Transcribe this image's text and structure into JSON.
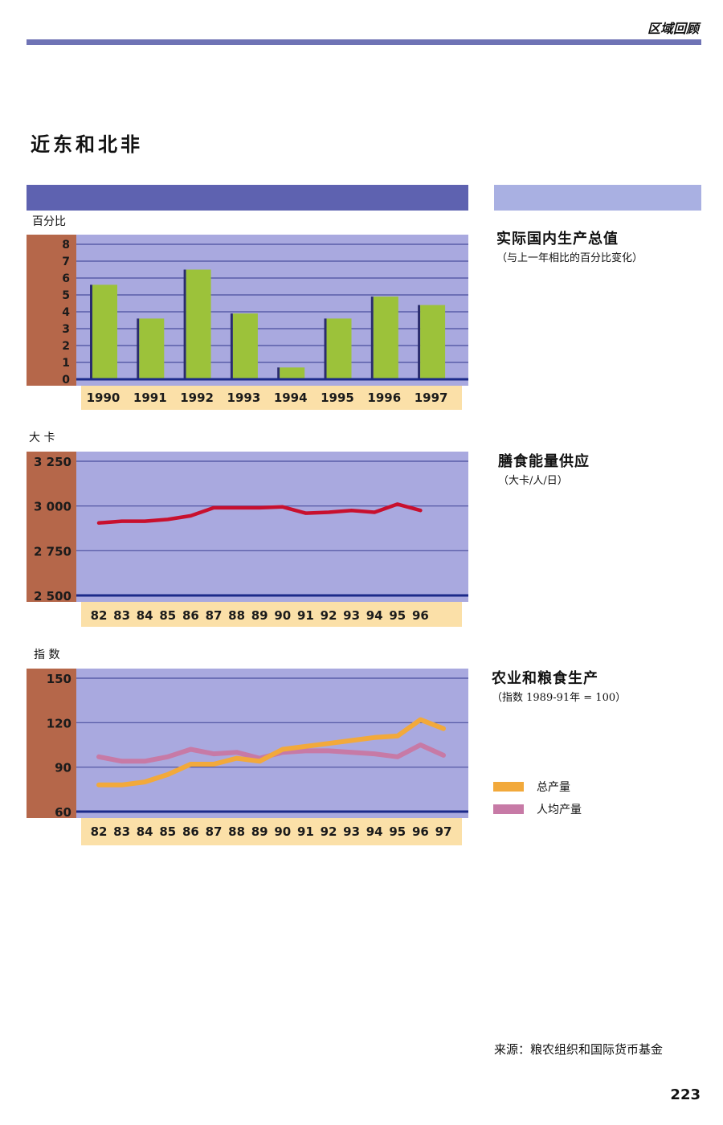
{
  "header": {
    "section_label": "区域回顾"
  },
  "page_title": "近东和北非",
  "colors": {
    "plot_bg": "#a9a9df",
    "axis_panel": "#b5674a",
    "xlabel_bg": "#fbe0a8",
    "gridline": "#4a4f9e",
    "bar": "#9cc23a",
    "line_energy": "#c8102e",
    "line_total": "#f2a93b",
    "line_percapita": "#c77aa6"
  },
  "gdp_panel": {
    "title": "实际国内生产总值",
    "subtitle": "（与上一年相比的百分比变化）"
  },
  "energy_panel": {
    "title": "膳食能量供应",
    "subtitle": "（大卡/人/日）"
  },
  "agri_panel": {
    "title": "农业和粮食生产",
    "subtitle": "（指数 1989-91年 = 100）"
  },
  "legend": [
    {
      "label": "总产量",
      "color": "#f2a93b"
    },
    {
      "label": "人均产量",
      "color": "#c77aa6"
    }
  ],
  "source": "来源：粮农组织和国际货币基金",
  "page_number": "223",
  "chart_data": [
    {
      "type": "bar",
      "ylabel": "百分比",
      "ylim": [
        0,
        8
      ],
      "yticks": [
        "0",
        "1",
        "2",
        "3",
        "4",
        "5",
        "6",
        "7",
        "8"
      ],
      "categories": [
        "1990",
        "1991",
        "1992",
        "1993",
        "1994",
        "1995",
        "1996",
        "1997"
      ],
      "values": [
        5.6,
        3.6,
        6.5,
        3.9,
        0.7,
        3.6,
        4.9,
        4.4
      ],
      "grid": true
    },
    {
      "type": "line",
      "ylabel": "大 卡",
      "ylim": [
        2500,
        3250
      ],
      "yticks": [
        "2 500",
        "2 750",
        "3 000",
        "3 250"
      ],
      "x": [
        "82",
        "83",
        "84",
        "85",
        "86",
        "87",
        "88",
        "89",
        "90",
        "91",
        "92",
        "93",
        "94",
        "95",
        "96"
      ],
      "series": [
        {
          "values": [
            2905,
            2915,
            2915,
            2925,
            2945,
            2990,
            2990,
            2990,
            2995,
            2960,
            2965,
            2975,
            2965,
            3010,
            2975
          ]
        }
      ],
      "grid": true
    },
    {
      "type": "line",
      "ylabel": "指 数",
      "ylim": [
        60,
        150
      ],
      "yticks": [
        "60",
        "90",
        "120",
        "150"
      ],
      "x": [
        "82",
        "83",
        "84",
        "85",
        "86",
        "87",
        "88",
        "89",
        "90",
        "91",
        "92",
        "93",
        "94",
        "95",
        "96",
        "97"
      ],
      "series": [
        {
          "name": "总产量",
          "values": [
            78,
            78,
            80,
            85,
            92,
            92,
            96,
            94,
            102,
            104,
            106,
            108,
            110,
            111,
            122,
            116
          ]
        },
        {
          "name": "人均产量",
          "values": [
            97,
            94,
            94,
            97,
            102,
            99,
            100,
            96,
            100,
            101,
            101,
            100,
            99,
            97,
            105,
            98
          ]
        }
      ],
      "grid": true
    }
  ]
}
